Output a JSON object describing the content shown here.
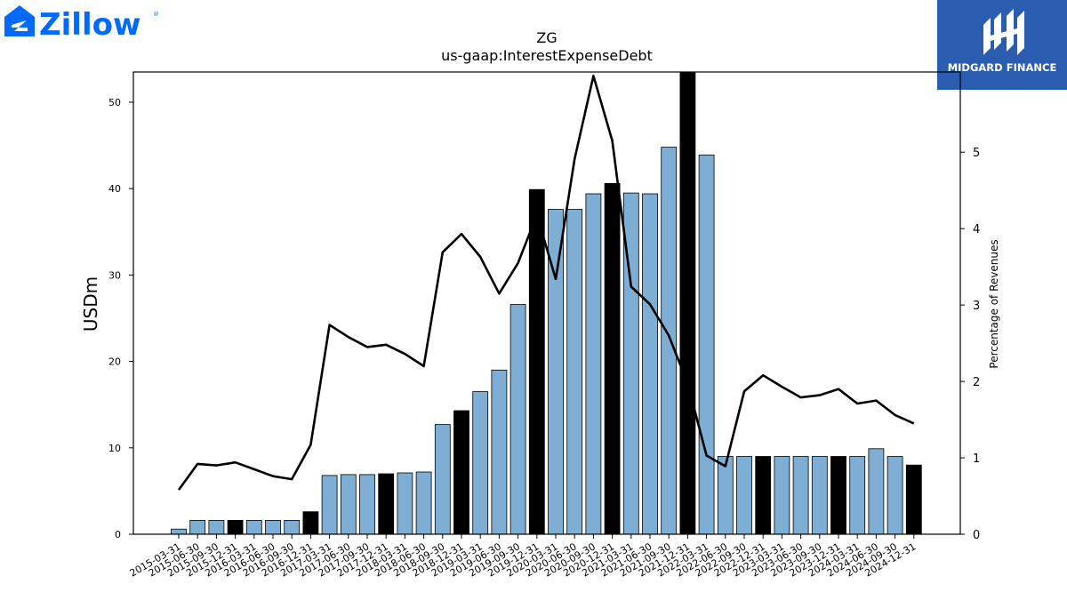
{
  "logos": {
    "left_brand": "Zillow",
    "right_brand": "MIDGARD FINANCE"
  },
  "colors": {
    "bar_default": "#7eaed3",
    "bar_highlight": "#000000",
    "line": "#000000",
    "zillow_blue": "#006aff",
    "midgard_bg": "#2a5db0"
  },
  "chart_data": {
    "type": "bar",
    "title": "ZG",
    "subtitle": "us-gaap:InterestExpenseDebt",
    "ylabel": "USDm",
    "y2label": "Percentage of Revenues",
    "ylim": [
      0,
      53.5
    ],
    "y2lim": [
      0,
      6.05
    ],
    "yticks": [
      0,
      10,
      20,
      30,
      40,
      50
    ],
    "y2ticks": [
      0,
      1,
      2,
      3,
      4,
      5
    ],
    "grid": false,
    "categories": [
      "2015-03-31",
      "2015-06-30",
      "2015-09-30",
      "2015-12-31",
      "2016-03-31",
      "2016-06-30",
      "2016-09-30",
      "2016-12-31",
      "2017-03-31",
      "2017-06-30",
      "2017-09-30",
      "2017-12-31",
      "2018-03-31",
      "2018-06-30",
      "2018-09-30",
      "2018-12-31",
      "2019-03-31",
      "2019-06-30",
      "2019-09-30",
      "2019-12-31",
      "2020-03-31",
      "2020-06-30",
      "2020-09-30",
      "2020-12-31",
      "2021-03-31",
      "2021-06-30",
      "2021-09-30",
      "2021-12-31",
      "2022-03-31",
      "2022-06-30",
      "2022-09-30",
      "2022-12-31",
      "2023-03-31",
      "2023-06-30",
      "2023-09-30",
      "2023-12-31",
      "2024-03-31",
      "2024-06-30",
      "2024-09-30",
      "2024-12-31"
    ],
    "series": [
      {
        "kind": "bar",
        "values": [
          0.6,
          1.6,
          1.6,
          1.6,
          1.6,
          1.6,
          1.6,
          2.6,
          6.8,
          6.9,
          6.9,
          7.0,
          7.1,
          7.2,
          12.7,
          14.3,
          16.5,
          19.0,
          26.6,
          39.9,
          37.6,
          37.6,
          39.4,
          40.6,
          39.5,
          39.4,
          44.8,
          53.5,
          43.9,
          9.0,
          9.0,
          9.0,
          9.0,
          9.0,
          9.0,
          9.0,
          9.0,
          9.9,
          9.0,
          8.0
        ],
        "highlight": [
          false,
          false,
          false,
          true,
          false,
          false,
          false,
          true,
          false,
          false,
          false,
          true,
          false,
          false,
          false,
          true,
          false,
          false,
          false,
          true,
          false,
          false,
          false,
          true,
          false,
          false,
          false,
          true,
          false,
          false,
          false,
          true,
          false,
          false,
          false,
          true,
          false,
          false,
          false,
          true
        ]
      },
      {
        "kind": "line",
        "axis": "right",
        "values": [
          0.58,
          0.92,
          0.9,
          0.94,
          0.85,
          0.76,
          0.72,
          1.17,
          2.74,
          2.58,
          2.45,
          2.48,
          2.36,
          2.2,
          3.69,
          3.93,
          3.63,
          3.15,
          3.55,
          4.18,
          3.34,
          4.91,
          6.0,
          5.15,
          3.24,
          3.01,
          2.6,
          1.97,
          1.03,
          0.89,
          1.87,
          2.08,
          1.93,
          1.79,
          1.82,
          1.9,
          1.71,
          1.75,
          1.56,
          1.45
        ]
      }
    ]
  }
}
